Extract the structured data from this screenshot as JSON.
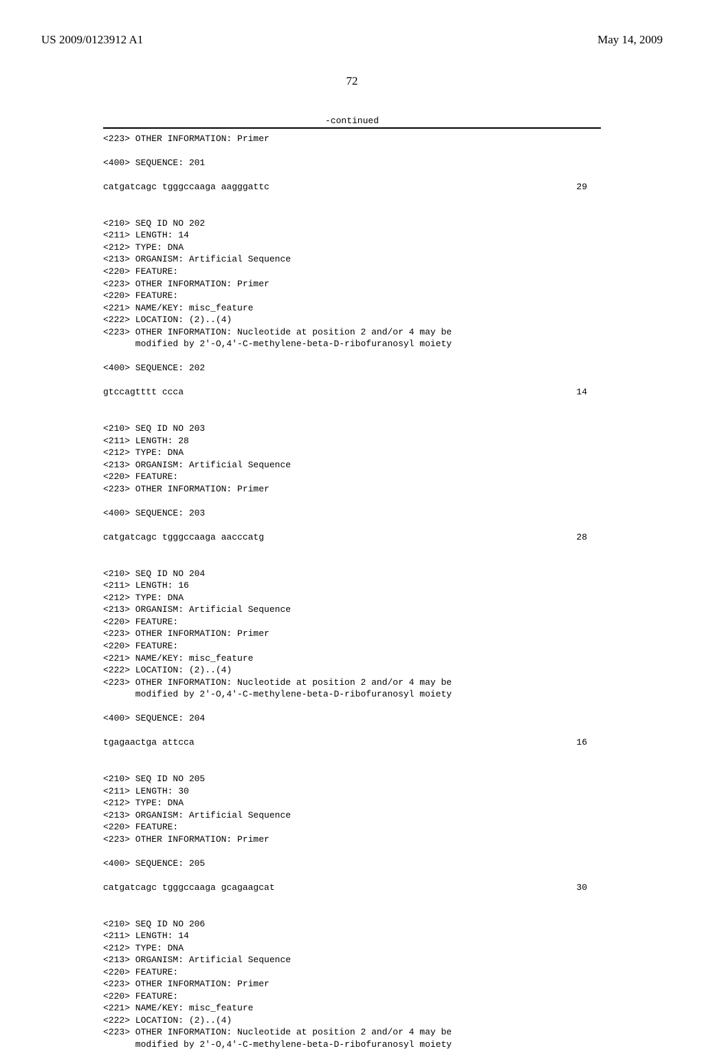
{
  "header": {
    "left": "US 2009/0123912 A1",
    "right": "May 14, 2009"
  },
  "page_number": "72",
  "continued_label": "-continued",
  "entries": [
    {
      "type": "line",
      "text": "<223> OTHER INFORMATION: Primer"
    },
    {
      "type": "blank"
    },
    {
      "type": "line",
      "text": "<400> SEQUENCE: 201"
    },
    {
      "type": "blank"
    },
    {
      "type": "seq",
      "text": "catgatcagc tgggccaaga aagggattc",
      "num": "29"
    },
    {
      "type": "blank"
    },
    {
      "type": "blank"
    },
    {
      "type": "line",
      "text": "<210> SEQ ID NO 202"
    },
    {
      "type": "line",
      "text": "<211> LENGTH: 14"
    },
    {
      "type": "line",
      "text": "<212> TYPE: DNA"
    },
    {
      "type": "line",
      "text": "<213> ORGANISM: Artificial Sequence"
    },
    {
      "type": "line",
      "text": "<220> FEATURE:"
    },
    {
      "type": "line",
      "text": "<223> OTHER INFORMATION: Primer"
    },
    {
      "type": "line",
      "text": "<220> FEATURE:"
    },
    {
      "type": "line",
      "text": "<221> NAME/KEY: misc_feature"
    },
    {
      "type": "line",
      "text": "<222> LOCATION: (2)..(4)"
    },
    {
      "type": "line",
      "text": "<223> OTHER INFORMATION: Nucleotide at position 2 and/or 4 may be"
    },
    {
      "type": "line",
      "text": "      modified by 2'-O,4'-C-methylene-beta-D-ribofuranosyl moiety"
    },
    {
      "type": "blank"
    },
    {
      "type": "line",
      "text": "<400> SEQUENCE: 202"
    },
    {
      "type": "blank"
    },
    {
      "type": "seq",
      "text": "gtccagtttt ccca",
      "num": "14"
    },
    {
      "type": "blank"
    },
    {
      "type": "blank"
    },
    {
      "type": "line",
      "text": "<210> SEQ ID NO 203"
    },
    {
      "type": "line",
      "text": "<211> LENGTH: 28"
    },
    {
      "type": "line",
      "text": "<212> TYPE: DNA"
    },
    {
      "type": "line",
      "text": "<213> ORGANISM: Artificial Sequence"
    },
    {
      "type": "line",
      "text": "<220> FEATURE:"
    },
    {
      "type": "line",
      "text": "<223> OTHER INFORMATION: Primer"
    },
    {
      "type": "blank"
    },
    {
      "type": "line",
      "text": "<400> SEQUENCE: 203"
    },
    {
      "type": "blank"
    },
    {
      "type": "seq",
      "text": "catgatcagc tgggccaaga aacccatg",
      "num": "28"
    },
    {
      "type": "blank"
    },
    {
      "type": "blank"
    },
    {
      "type": "line",
      "text": "<210> SEQ ID NO 204"
    },
    {
      "type": "line",
      "text": "<211> LENGTH: 16"
    },
    {
      "type": "line",
      "text": "<212> TYPE: DNA"
    },
    {
      "type": "line",
      "text": "<213> ORGANISM: Artificial Sequence"
    },
    {
      "type": "line",
      "text": "<220> FEATURE:"
    },
    {
      "type": "line",
      "text": "<223> OTHER INFORMATION: Primer"
    },
    {
      "type": "line",
      "text": "<220> FEATURE:"
    },
    {
      "type": "line",
      "text": "<221> NAME/KEY: misc_feature"
    },
    {
      "type": "line",
      "text": "<222> LOCATION: (2)..(4)"
    },
    {
      "type": "line",
      "text": "<223> OTHER INFORMATION: Nucleotide at position 2 and/or 4 may be"
    },
    {
      "type": "line",
      "text": "      modified by 2'-O,4'-C-methylene-beta-D-ribofuranosyl moiety"
    },
    {
      "type": "blank"
    },
    {
      "type": "line",
      "text": "<400> SEQUENCE: 204"
    },
    {
      "type": "blank"
    },
    {
      "type": "seq",
      "text": "tgagaactga attcca",
      "num": "16"
    },
    {
      "type": "blank"
    },
    {
      "type": "blank"
    },
    {
      "type": "line",
      "text": "<210> SEQ ID NO 205"
    },
    {
      "type": "line",
      "text": "<211> LENGTH: 30"
    },
    {
      "type": "line",
      "text": "<212> TYPE: DNA"
    },
    {
      "type": "line",
      "text": "<213> ORGANISM: Artificial Sequence"
    },
    {
      "type": "line",
      "text": "<220> FEATURE:"
    },
    {
      "type": "line",
      "text": "<223> OTHER INFORMATION: Primer"
    },
    {
      "type": "blank"
    },
    {
      "type": "line",
      "text": "<400> SEQUENCE: 205"
    },
    {
      "type": "blank"
    },
    {
      "type": "seq",
      "text": "catgatcagc tgggccaaga gcagaagcat",
      "num": "30"
    },
    {
      "type": "blank"
    },
    {
      "type": "blank"
    },
    {
      "type": "line",
      "text": "<210> SEQ ID NO 206"
    },
    {
      "type": "line",
      "text": "<211> LENGTH: 14"
    },
    {
      "type": "line",
      "text": "<212> TYPE: DNA"
    },
    {
      "type": "line",
      "text": "<213> ORGANISM: Artificial Sequence"
    },
    {
      "type": "line",
      "text": "<220> FEATURE:"
    },
    {
      "type": "line",
      "text": "<223> OTHER INFORMATION: Primer"
    },
    {
      "type": "line",
      "text": "<220> FEATURE:"
    },
    {
      "type": "line",
      "text": "<221> NAME/KEY: misc_feature"
    },
    {
      "type": "line",
      "text": "<222> LOCATION: (2)..(4)"
    },
    {
      "type": "line",
      "text": "<223> OTHER INFORMATION: Nucleotide at position 2 and/or 4 may be"
    },
    {
      "type": "line",
      "text": "      modified by 2'-O,4'-C-methylene-beta-D-ribofuranosyl moiety"
    }
  ]
}
